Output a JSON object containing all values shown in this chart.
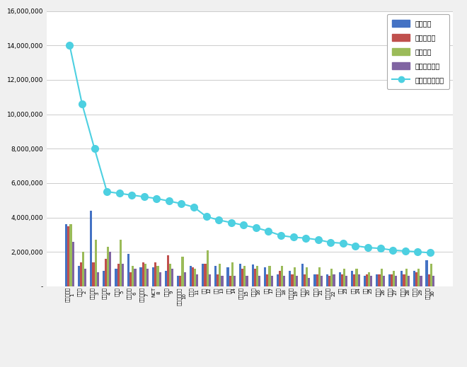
{
  "categories": [
    "방탄소년단",
    "임영웅",
    "블랙핑크",
    "트와이스",
    "어스파",
    "오마이걸",
    "아이지원한",
    "NCT",
    "아이유",
    "세븐툓스니인",
    "여자사",
    "화사",
    "태니",
    "연소",
    "강다니을",
    "이승기",
    "제시",
    "마마무",
    "이원화정",
    "인장현",
    "창하정",
    "레드벨벳",
    "선마",
    "그룹",
    "조이",
    "장범준",
    "송가인",
    "장성규",
    "연우성",
    "헤에리리"
  ],
  "ranks": [
    1,
    2,
    3,
    4,
    5,
    6,
    7,
    8,
    9,
    10,
    11,
    12,
    13,
    14,
    15,
    16,
    17,
    18,
    19,
    20,
    21,
    22,
    23,
    24,
    25,
    26,
    27,
    28,
    29,
    30
  ],
  "participation": [
    3600000,
    1200000,
    4400000,
    900000,
    1000000,
    1900000,
    1100000,
    1100000,
    900000,
    600000,
    1200000,
    1300000,
    1200000,
    1100000,
    1300000,
    1250000,
    1100000,
    700000,
    900000,
    1300000,
    700000,
    700000,
    800000,
    900000,
    600000,
    700000,
    700000,
    900000,
    900000,
    1500000
  ],
  "media": [
    3500000,
    1400000,
    1400000,
    1600000,
    1300000,
    800000,
    1400000,
    1400000,
    1800000,
    600000,
    1100000,
    1300000,
    700000,
    600000,
    1000000,
    1000000,
    700000,
    900000,
    700000,
    700000,
    700000,
    600000,
    700000,
    700000,
    700000,
    700000,
    700000,
    700000,
    800000,
    700000
  ],
  "communication": [
    3600000,
    2000000,
    2700000,
    2300000,
    2700000,
    1200000,
    1300000,
    1200000,
    1300000,
    1700000,
    1000000,
    2100000,
    1300000,
    1400000,
    1200000,
    1200000,
    1200000,
    1200000,
    1100000,
    1100000,
    1100000,
    1000000,
    1000000,
    1000000,
    800000,
    1000000,
    900000,
    1000000,
    1000000,
    1300000
  ],
  "community": [
    2600000,
    1000000,
    800000,
    2000000,
    1300000,
    1000000,
    1000000,
    800000,
    1000000,
    800000,
    700000,
    700000,
    600000,
    600000,
    600000,
    600000,
    600000,
    600000,
    600000,
    500000,
    600000,
    700000,
    600000,
    700000,
    600000,
    600000,
    600000,
    600000,
    600000,
    600000
  ],
  "brand": [
    14000000,
    10600000,
    8000000,
    5500000,
    5400000,
    5300000,
    5200000,
    5100000,
    4950000,
    4800000,
    4600000,
    4050000,
    3850000,
    3700000,
    3550000,
    3400000,
    3200000,
    2950000,
    2850000,
    2800000,
    2700000,
    2550000,
    2500000,
    2350000,
    2250000,
    2200000,
    2100000,
    2050000,
    2000000,
    1950000
  ],
  "bar_colors": [
    "#4472c4",
    "#c0504d",
    "#9bbb59",
    "#8064a2"
  ],
  "line_color": "#4dd0e1",
  "ylim": [
    0,
    16000000
  ],
  "yticks": [
    0,
    2000000,
    4000000,
    6000000,
    8000000,
    10000000,
    12000000,
    14000000,
    16000000
  ],
  "legend_labels": [
    "참여지수",
    "미디어지수",
    "소통지수",
    "커뮤니티지수",
    "브랜드평판지수"
  ],
  "bg_color": "#f0f0f0",
  "plot_bg_color": "#ffffff"
}
